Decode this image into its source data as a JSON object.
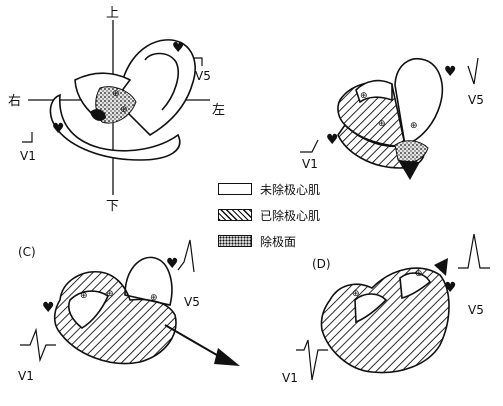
{
  "axes": {
    "up": "上",
    "down": "下",
    "left": "右",
    "right": "左"
  },
  "leads": {
    "a_v5": "V5",
    "a_v1": "V1",
    "b_v5": "V5",
    "b_v1": "V1",
    "c_v5": "V5",
    "c_v1": "V1",
    "d_v5": "V5",
    "d_v1": "V1"
  },
  "panels": {
    "c": "(C)",
    "d": "(D)"
  },
  "legend": {
    "undepolarized": "未除极心肌",
    "depolarized": "已除极心肌",
    "front": "除极面"
  }
}
